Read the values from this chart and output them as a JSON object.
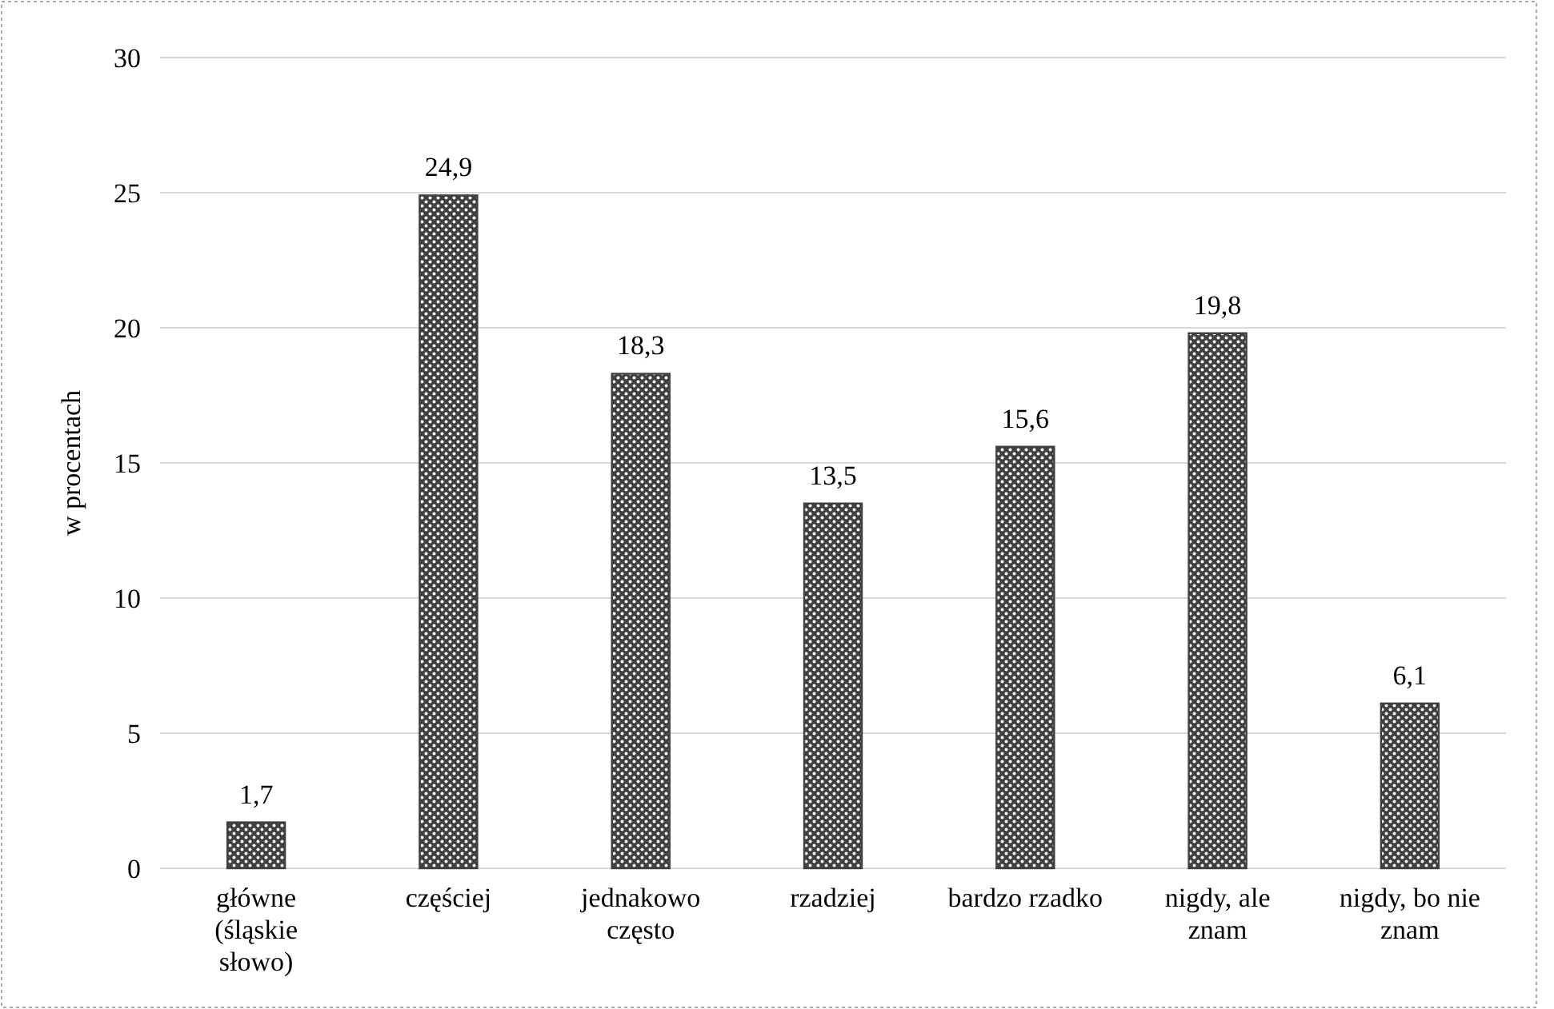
{
  "chart_data": {
    "type": "bar",
    "ylabel": "w procentach",
    "categories": [
      "główne (śląskie słowo)",
      "częściej",
      "jednakowo często",
      "rzadziej",
      "bardzo rzadko",
      "nigdy, ale znam",
      "nigdy, bo nie znam"
    ],
    "values": [
      1.7,
      24.9,
      18.3,
      13.5,
      15.6,
      19.8,
      6.1
    ],
    "value_labels": [
      "1,7",
      "24,9",
      "18,3",
      "13,5",
      "15,6",
      "19,8",
      "6,1"
    ],
    "color": "#404040",
    "ylim": [
      0,
      30
    ],
    "yticks": [
      0,
      5,
      10,
      15,
      20,
      25,
      30
    ],
    "grid": "y"
  }
}
